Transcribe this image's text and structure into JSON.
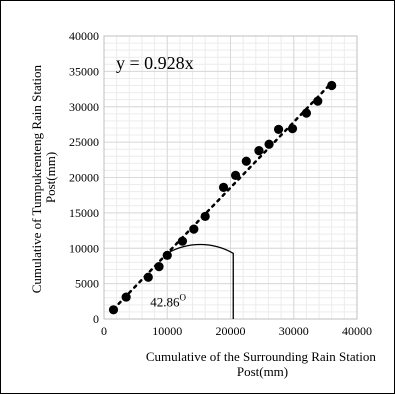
{
  "chart_data": {
    "type": "scatter",
    "title": "",
    "xlabel_lines": [
      "Cumulative of the Surrounding Rain Station",
      "Post(mm)"
    ],
    "ylabel_lines": [
      "Cumulative of Tumpukrenteng Rain Station",
      "Post(mm)"
    ],
    "xlim": [
      0,
      40000
    ],
    "ylim": [
      0,
      40000
    ],
    "x_ticks": [
      0,
      10000,
      20000,
      30000,
      40000
    ],
    "y_ticks": [
      0,
      5000,
      10000,
      15000,
      20000,
      25000,
      30000,
      35000,
      40000
    ],
    "x_tick_labels": [
      "0",
      "10000",
      "20000",
      "30000",
      "40000"
    ],
    "y_tick_labels": [
      "0",
      "5000",
      "10000",
      "15000",
      "20000",
      "25000",
      "30000",
      "35000",
      "40000"
    ],
    "grid": true,
    "legend": "none",
    "trendline": {
      "equation": "y = 0.928x",
      "slope": 0.928,
      "style": "dotted"
    },
    "angle_annotation": {
      "label": "42.86",
      "superscript": "O"
    },
    "series": [
      {
        "x": [
          1500,
          3500,
          7000,
          8700,
          10000,
          12400,
          14200,
          16000,
          18900,
          20800,
          22500,
          24500,
          26100,
          27600,
          29800,
          32000,
          33800,
          36000
        ],
        "y": [
          1300,
          3100,
          5900,
          7400,
          9000,
          11000,
          12700,
          14500,
          18600,
          20300,
          22300,
          23800,
          24700,
          26800,
          26900,
          29100,
          30800,
          33000
        ]
      }
    ],
    "colors": {
      "marker": "#000000",
      "grid": "#d9d9d9",
      "trendline": "#000000"
    }
  }
}
